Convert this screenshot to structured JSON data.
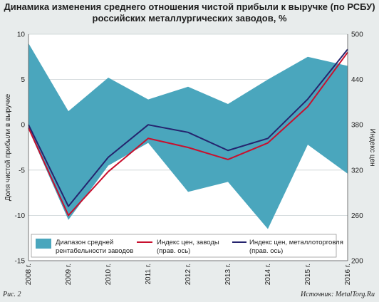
{
  "figure": {
    "title_line1": "Динамика изменения среднего отношения чистой прибыли к выручке (по РСБУ)",
    "title_line2": "российских металлургических заводов, %",
    "caption": "Рис. 2",
    "source": "Источник: MetalTorg.Ru"
  },
  "colors": {
    "band": "#4aa6bd",
    "factory_line": "#c8102e",
    "trade_line": "#25246e",
    "background": "#e8ecec",
    "plot_bg": "#ffffff"
  },
  "chart_data": {
    "type": "area",
    "title": "Динамика изменения среднего отношения чистой прибыли к выручке (по РСБУ) российских металлургических заводов, %",
    "categories": [
      "2008 г.",
      "2009 г.",
      "2010 г.",
      "2011 г.",
      "2012 г.",
      "2013 г.",
      "2014 г.",
      "2015 г.",
      "2016 г."
    ],
    "ylabel": "Доля чистой прибыли в выручке",
    "y2label": "Индекс цен",
    "ylim": [
      -15,
      10
    ],
    "y2lim": [
      200,
      500
    ],
    "yticks": [
      -15,
      -10,
      -5,
      0,
      5,
      10
    ],
    "y2ticks": [
      200,
      260,
      320,
      380,
      440,
      500
    ],
    "grid": "horizontal",
    "legend_position": "bottom",
    "band": {
      "name": "Диапазон средней рентабельности заводов",
      "upper": [
        9.0,
        1.5,
        5.2,
        2.8,
        4.2,
        2.3,
        5.0,
        7.5,
        6.5
      ],
      "lower": [
        -0.5,
        -10.5,
        -4.5,
        -2.0,
        -7.4,
        -6.3,
        -11.5,
        -2.2,
        -5.4
      ]
    },
    "series": [
      {
        "name": "Индекс цен, заводы (прав. ось)",
        "axis": "right",
        "values": [
          376,
          260,
          318,
          362,
          350,
          334,
          356,
          404,
          476
        ]
      },
      {
        "name": "Индекс цен, металлоторговля (прав. ось)",
        "axis": "right",
        "values": [
          380,
          272,
          337,
          380,
          370,
          346,
          362,
          414,
          480
        ]
      }
    ]
  }
}
